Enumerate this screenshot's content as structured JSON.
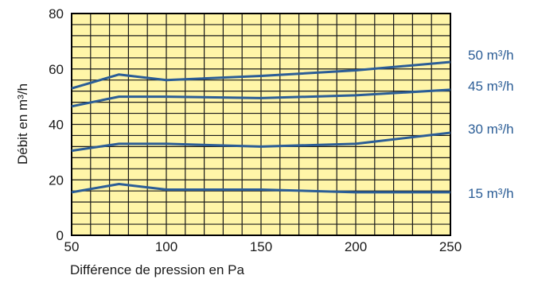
{
  "chart_data": {
    "type": "line",
    "title": "",
    "xlabel": "Différence de pression en Pa",
    "ylabel": "Débit en m³/h",
    "xlim": [
      50,
      250
    ],
    "ylim": [
      0,
      80
    ],
    "x_ticks": [
      "50",
      "100",
      "150",
      "200",
      "250"
    ],
    "y_ticks": [
      "0",
      "20",
      "40",
      "60",
      "80"
    ],
    "grid": true,
    "background_color": "#fff5a8",
    "grid_color": "#1a1a1a",
    "line_color": "#2b5d96",
    "label_color": "#2b5d96",
    "series": [
      {
        "name": "50 m³/h",
        "x": [
          50,
          75,
          100,
          150,
          200,
          250
        ],
        "y": [
          53,
          58,
          56,
          57.5,
          59.5,
          62.5
        ]
      },
      {
        "name": "45 m³/h",
        "x": [
          50,
          75,
          100,
          150,
          200,
          250
        ],
        "y": [
          46.5,
          50,
          50,
          49.5,
          50.5,
          52.5
        ]
      },
      {
        "name": "30 m³/h",
        "x": [
          50,
          75,
          100,
          150,
          200,
          250
        ],
        "y": [
          30.5,
          33,
          33,
          32,
          33,
          37
        ]
      },
      {
        "name": "15 m³/h",
        "x": [
          50,
          75,
          100,
          150,
          200,
          250
        ],
        "y": [
          15.5,
          18.5,
          16.5,
          16.5,
          15.5,
          15.5
        ]
      }
    ]
  }
}
